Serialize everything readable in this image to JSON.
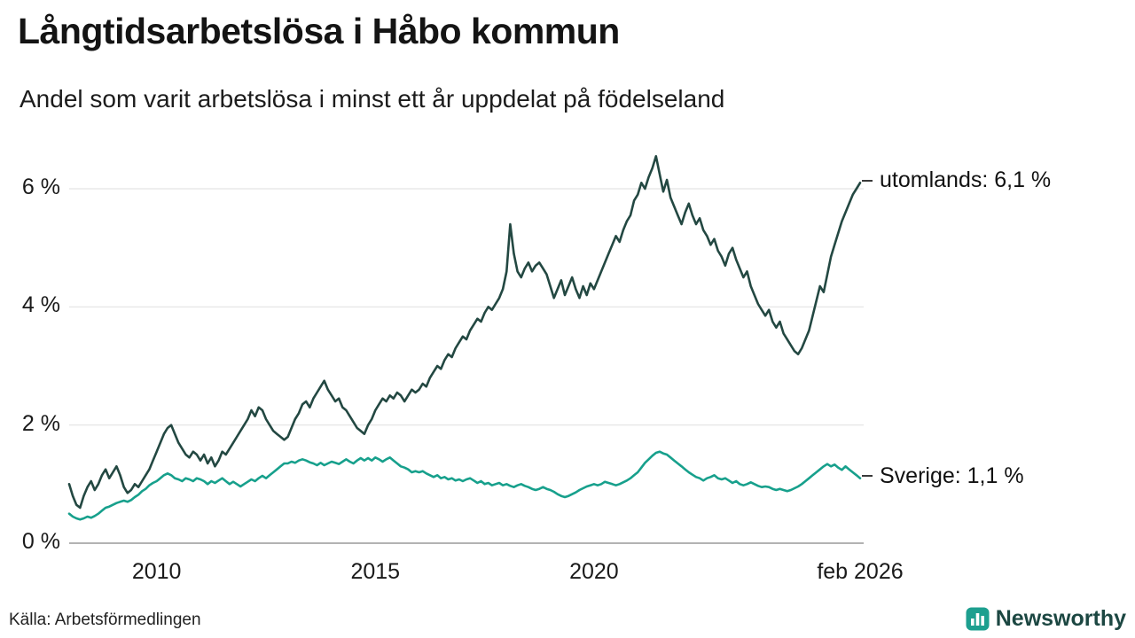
{
  "header": {
    "title": "Långtidsarbetslösa i Håbo kommun",
    "subtitle": "Andel som varit arbetslösa i minst ett år uppdelat på födelseland"
  },
  "footer": {
    "source": "Källa: Arbetsförmedlingen",
    "brand_name": "Newsworthy"
  },
  "colors": {
    "utomlands_line": "#234842",
    "sverige_line": "#17a08c",
    "grid": "#e3e3e3",
    "axis": "#9a9a9a",
    "brand_teal": "#1d9f8f",
    "brand_text": "#1c4742"
  },
  "chart_data": {
    "type": "line",
    "title": "Långtidsarbetslösa i Håbo kommun",
    "subtitle": "Andel som varit arbetslösa i minst ett år uppdelat på födelseland",
    "unit": "%",
    "x_start": 2008.0,
    "x_step": 0.083333,
    "xlim": [
      2008,
      2026.084
    ],
    "ylim": [
      0,
      6.9
    ],
    "grid": true,
    "legend_position": "right-end-labels",
    "yticks": [
      0,
      2,
      4,
      6
    ],
    "ytick_labels": [
      "0 %",
      "2 %",
      "4 %",
      "6 %"
    ],
    "xticks": [
      2010,
      2015,
      2020,
      2026.084
    ],
    "xtick_labels": [
      "2010",
      "2015",
      "2020",
      "feb 2026"
    ],
    "series": [
      {
        "name": "utomlands",
        "label": "utomlands: 6,1 %",
        "last_value_text": "6,1 %",
        "color": "#234842",
        "values": [
          1.0,
          0.8,
          0.65,
          0.6,
          0.8,
          0.95,
          1.05,
          0.9,
          1.0,
          1.15,
          1.25,
          1.1,
          1.2,
          1.3,
          1.15,
          0.95,
          0.85,
          0.9,
          1.0,
          0.95,
          1.05,
          1.15,
          1.25,
          1.4,
          1.55,
          1.7,
          1.85,
          1.95,
          2.0,
          1.85,
          1.7,
          1.6,
          1.5,
          1.45,
          1.55,
          1.5,
          1.4,
          1.5,
          1.35,
          1.45,
          1.3,
          1.4,
          1.55,
          1.5,
          1.6,
          1.7,
          1.8,
          1.9,
          2.0,
          2.1,
          2.25,
          2.15,
          2.3,
          2.25,
          2.1,
          2.0,
          1.9,
          1.85,
          1.8,
          1.75,
          1.8,
          1.95,
          2.1,
          2.2,
          2.35,
          2.4,
          2.3,
          2.45,
          2.55,
          2.65,
          2.75,
          2.6,
          2.5,
          2.4,
          2.45,
          2.3,
          2.25,
          2.15,
          2.05,
          1.95,
          1.9,
          1.85,
          2.0,
          2.1,
          2.25,
          2.35,
          2.45,
          2.4,
          2.5,
          2.45,
          2.55,
          2.5,
          2.4,
          2.5,
          2.6,
          2.55,
          2.6,
          2.7,
          2.65,
          2.8,
          2.9,
          3.0,
          2.95,
          3.1,
          3.2,
          3.15,
          3.3,
          3.4,
          3.5,
          3.45,
          3.6,
          3.7,
          3.8,
          3.75,
          3.9,
          4.0,
          3.95,
          4.05,
          4.15,
          4.3,
          4.6,
          5.4,
          4.9,
          4.6,
          4.5,
          4.65,
          4.75,
          4.6,
          4.7,
          4.75,
          4.65,
          4.55,
          4.35,
          4.15,
          4.3,
          4.45,
          4.2,
          4.35,
          4.5,
          4.3,
          4.15,
          4.35,
          4.2,
          4.4,
          4.3,
          4.45,
          4.6,
          4.75,
          4.9,
          5.05,
          5.2,
          5.1,
          5.3,
          5.45,
          5.55,
          5.8,
          5.9,
          6.1,
          6.0,
          6.2,
          6.35,
          6.55,
          6.25,
          5.95,
          6.15,
          5.85,
          5.7,
          5.55,
          5.4,
          5.6,
          5.75,
          5.55,
          5.4,
          5.5,
          5.3,
          5.2,
          5.05,
          5.15,
          4.95,
          4.85,
          4.7,
          4.9,
          5.0,
          4.8,
          4.65,
          4.5,
          4.6,
          4.35,
          4.2,
          4.05,
          3.95,
          3.85,
          3.95,
          3.75,
          3.65,
          3.75,
          3.55,
          3.45,
          3.35,
          3.25,
          3.2,
          3.3,
          3.45,
          3.6,
          3.85,
          4.1,
          4.35,
          4.25,
          4.55,
          4.85,
          5.05,
          5.25,
          5.45,
          5.6,
          5.75,
          5.9,
          6.0,
          6.1
        ]
      },
      {
        "name": "Sverige",
        "label": "Sverige: 1,1 %",
        "last_value_text": "1,1 %",
        "color": "#17a08c",
        "values": [
          0.5,
          0.45,
          0.42,
          0.4,
          0.42,
          0.45,
          0.43,
          0.46,
          0.5,
          0.55,
          0.6,
          0.62,
          0.65,
          0.68,
          0.7,
          0.72,
          0.7,
          0.73,
          0.78,
          0.82,
          0.88,
          0.92,
          0.98,
          1.02,
          1.05,
          1.1,
          1.15,
          1.18,
          1.15,
          1.1,
          1.08,
          1.05,
          1.1,
          1.08,
          1.05,
          1.1,
          1.08,
          1.05,
          1.0,
          1.05,
          1.02,
          1.06,
          1.1,
          1.05,
          1.0,
          1.04,
          1.0,
          0.96,
          1.0,
          1.04,
          1.08,
          1.05,
          1.1,
          1.14,
          1.1,
          1.15,
          1.2,
          1.25,
          1.3,
          1.35,
          1.35,
          1.38,
          1.36,
          1.4,
          1.42,
          1.4,
          1.37,
          1.35,
          1.32,
          1.36,
          1.32,
          1.35,
          1.38,
          1.36,
          1.34,
          1.38,
          1.42,
          1.38,
          1.35,
          1.4,
          1.44,
          1.4,
          1.44,
          1.4,
          1.45,
          1.42,
          1.38,
          1.42,
          1.45,
          1.4,
          1.35,
          1.3,
          1.28,
          1.25,
          1.2,
          1.22,
          1.2,
          1.22,
          1.18,
          1.15,
          1.12,
          1.15,
          1.1,
          1.12,
          1.08,
          1.1,
          1.06,
          1.08,
          1.05,
          1.08,
          1.1,
          1.06,
          1.02,
          1.05,
          1.0,
          1.02,
          0.98,
          1.0,
          1.02,
          0.98,
          1.0,
          0.97,
          0.95,
          0.98,
          1.0,
          0.97,
          0.95,
          0.92,
          0.9,
          0.92,
          0.95,
          0.92,
          0.9,
          0.87,
          0.83,
          0.8,
          0.78,
          0.8,
          0.83,
          0.86,
          0.9,
          0.93,
          0.96,
          0.98,
          1.0,
          0.98,
          1.0,
          1.04,
          1.02,
          1.0,
          0.98,
          1.0,
          1.03,
          1.06,
          1.1,
          1.15,
          1.2,
          1.28,
          1.36,
          1.42,
          1.48,
          1.53,
          1.55,
          1.52,
          1.5,
          1.45,
          1.4,
          1.35,
          1.3,
          1.25,
          1.2,
          1.16,
          1.12,
          1.1,
          1.06,
          1.1,
          1.12,
          1.15,
          1.1,
          1.08,
          1.1,
          1.06,
          1.02,
          1.05,
          1.0,
          0.98,
          1.0,
          1.03,
          1.0,
          0.97,
          0.95,
          0.96,
          0.95,
          0.92,
          0.9,
          0.92,
          0.9,
          0.88,
          0.9,
          0.93,
          0.96,
          1.0,
          1.05,
          1.1,
          1.15,
          1.2,
          1.25,
          1.3,
          1.34,
          1.3,
          1.33,
          1.28,
          1.24,
          1.3,
          1.25,
          1.2,
          1.15,
          1.1
        ]
      }
    ]
  }
}
